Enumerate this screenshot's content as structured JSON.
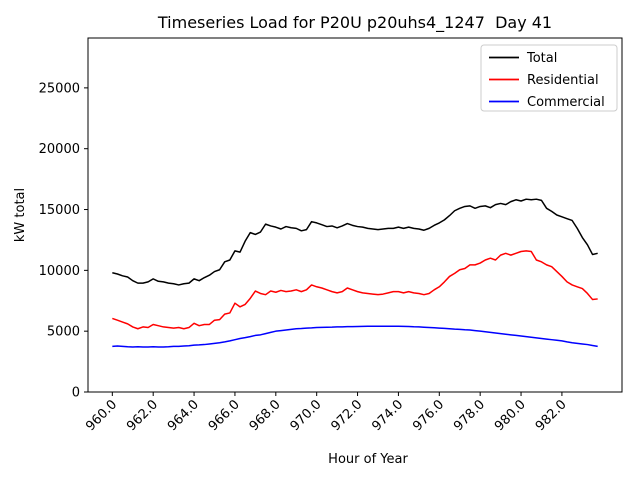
{
  "chart_data": {
    "type": "line",
    "title": "Timeseries Load for P20U p20uhs4_1247  Day 41",
    "xlabel": "Hour of Year",
    "ylabel": "kW total",
    "xlim": [
      958.81,
      984.94
    ],
    "ylim": [
      0,
      29100
    ],
    "grid": false,
    "x_ticks": [
      960,
      962,
      964,
      966,
      968,
      970,
      972,
      974,
      976,
      978,
      980,
      982
    ],
    "x_tick_labels": [
      "960.0",
      "962.0",
      "964.0",
      "966.0",
      "968.0",
      "970.0",
      "972.0",
      "974.0",
      "976.0",
      "978.0",
      "980.0",
      "982.0"
    ],
    "x_tick_rotation_deg": 45,
    "y_ticks": [
      0,
      5000,
      10000,
      15000,
      20000,
      25000
    ],
    "y_tick_labels": [
      "0",
      "5000",
      "10000",
      "15000",
      "20000",
      "25000"
    ],
    "legend": {
      "position": "upper right",
      "entries": [
        {
          "label": "Total",
          "color": "#000000"
        },
        {
          "label": "Residential",
          "color": "#ff0000"
        },
        {
          "label": "Commercial",
          "color": "#0000ff"
        }
      ]
    },
    "x_start": 960.0,
    "x_step": 0.25,
    "n_points": 96,
    "series": [
      {
        "name": "Total",
        "color": "#000000",
        "values": [
          9800,
          9700,
          9550,
          9450,
          9150,
          8950,
          8950,
          9050,
          9300,
          9100,
          9050,
          8950,
          8900,
          8800,
          8900,
          8950,
          9300,
          9150,
          9400,
          9600,
          9900,
          10050,
          10700,
          10850,
          11600,
          11500,
          12400,
          13100,
          12950,
          13150,
          13800,
          13650,
          13550,
          13400,
          13600,
          13500,
          13450,
          13250,
          13350,
          14000,
          13900,
          13750,
          13600,
          13650,
          13500,
          13650,
          13850,
          13700,
          13600,
          13550,
          13450,
          13400,
          13350,
          13400,
          13450,
          13450,
          13550,
          13450,
          13550,
          13450,
          13400,
          13300,
          13450,
          13700,
          13900,
          14150,
          14500,
          14900,
          15100,
          15250,
          15300,
          15100,
          15250,
          15300,
          15150,
          15400,
          15500,
          15400,
          15650,
          15800,
          15700,
          15850,
          15800,
          15850,
          15750,
          15100,
          14850,
          14550,
          14400,
          14250,
          14100,
          13450,
          12700,
          12100,
          11300,
          11400
        ]
      },
      {
        "name": "Residential",
        "color": "#ff0000",
        "values": [
          6050,
          5900,
          5750,
          5600,
          5350,
          5200,
          5350,
          5300,
          5550,
          5450,
          5350,
          5300,
          5250,
          5300,
          5200,
          5300,
          5650,
          5450,
          5550,
          5550,
          5900,
          5950,
          6400,
          6500,
          7300,
          7000,
          7200,
          7700,
          8300,
          8100,
          8000,
          8300,
          8200,
          8350,
          8250,
          8300,
          8400,
          8250,
          8400,
          8800,
          8650,
          8550,
          8400,
          8250,
          8150,
          8250,
          8550,
          8400,
          8250,
          8150,
          8100,
          8050,
          8000,
          8050,
          8150,
          8250,
          8250,
          8150,
          8250,
          8150,
          8100,
          8000,
          8100,
          8400,
          8650,
          9050,
          9500,
          9750,
          10050,
          10150,
          10450,
          10450,
          10600,
          10850,
          11000,
          10850,
          11250,
          11400,
          11250,
          11400,
          11550,
          11600,
          11550,
          10850,
          10700,
          10450,
          10300,
          9900,
          9500,
          9050,
          8800,
          8650,
          8500,
          8100,
          7600,
          7650
        ]
      },
      {
        "name": "Commercial",
        "color": "#0000ff",
        "values": [
          3750,
          3780,
          3750,
          3720,
          3700,
          3720,
          3700,
          3700,
          3720,
          3700,
          3700,
          3720,
          3750,
          3750,
          3780,
          3800,
          3850,
          3870,
          3900,
          3950,
          4000,
          4050,
          4120,
          4200,
          4300,
          4400,
          4470,
          4550,
          4650,
          4700,
          4800,
          4900,
          5000,
          5050,
          5100,
          5150,
          5200,
          5220,
          5250,
          5270,
          5300,
          5310,
          5320,
          5330,
          5350,
          5350,
          5370,
          5370,
          5380,
          5390,
          5400,
          5400,
          5410,
          5410,
          5400,
          5400,
          5400,
          5390,
          5380,
          5360,
          5350,
          5320,
          5300,
          5280,
          5250,
          5230,
          5200,
          5170,
          5150,
          5120,
          5100,
          5050,
          5000,
          4950,
          4900,
          4850,
          4800,
          4750,
          4700,
          4650,
          4600,
          4550,
          4500,
          4450,
          4400,
          4350,
          4300,
          4250,
          4200,
          4120,
          4050,
          4000,
          3950,
          3900,
          3820,
          3750
        ]
      }
    ]
  }
}
